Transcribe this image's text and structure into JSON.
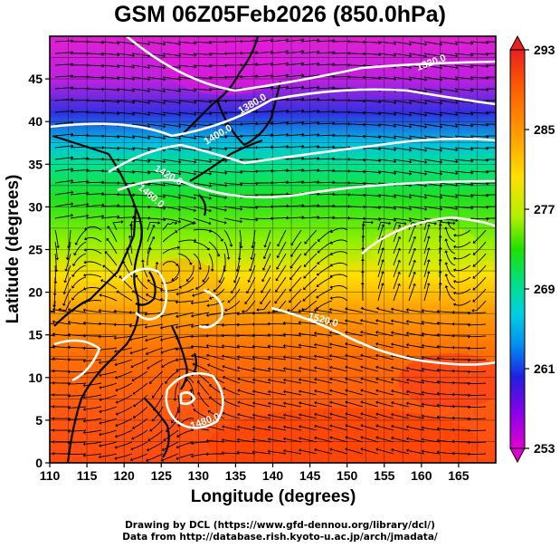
{
  "title": "GSM 06Z05Feb2026 (850.0hPa)",
  "x_axis": {
    "label": "Longitude (degrees)",
    "ticks": [
      "110",
      "115",
      "120",
      "125",
      "130",
      "135",
      "140",
      "145",
      "150",
      "155",
      "160",
      "165"
    ]
  },
  "y_axis": {
    "label": "Latitude  (degrees)",
    "ticks": [
      "0",
      "5",
      "10",
      "15",
      "20",
      "25",
      "30",
      "35",
      "40",
      "45"
    ]
  },
  "colorbar": {
    "ticks": [
      "253",
      "261",
      "269",
      "277",
      "285",
      "293"
    ],
    "min": 253,
    "max": 293,
    "colors": [
      "#e000d0",
      "#8a00e8",
      "#2020e0",
      "#00a0f0",
      "#00e0e0",
      "#00e080",
      "#20e000",
      "#b0f000",
      "#ffe000",
      "#ffa000",
      "#ff6000",
      "#e82020"
    ]
  },
  "contour_labels": [
    "1320.0",
    "1380.0",
    "1400.0",
    "1420.0",
    "1460.0",
    "1520.0",
    "1480.0"
  ],
  "credits": {
    "line1": "Drawing by DCL (https://www.gfd-dennou.org/library/dcl/)",
    "line2": "Data from http://database.rish.kyoto-u.ac.jp/arch/jmadata/"
  },
  "colors": {
    "land_outline": "#000000",
    "contour": "#ffffff",
    "streamline": "#000000"
  }
}
